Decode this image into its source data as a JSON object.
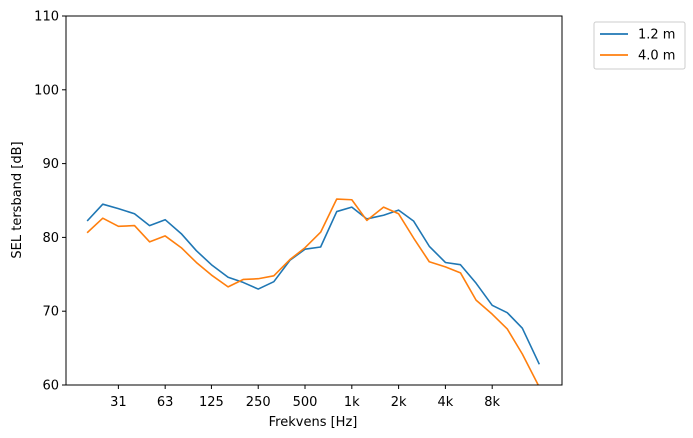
{
  "chart_data": {
    "type": "line",
    "xlabel": "Frekvens [Hz]",
    "ylabel": "SEL tersband [dB]",
    "ylim": [
      60,
      110
    ],
    "y_ticks": [
      60,
      70,
      80,
      90,
      100,
      110
    ],
    "x_scale": "log",
    "x_ticks": [
      {
        "value": 31.5,
        "label": "31"
      },
      {
        "value": 63,
        "label": "63"
      },
      {
        "value": 125,
        "label": "125"
      },
      {
        "value": 250,
        "label": "250"
      },
      {
        "value": 500,
        "label": "500"
      },
      {
        "value": 1000,
        "label": "1k"
      },
      {
        "value": 2000,
        "label": "2k"
      },
      {
        "value": 4000,
        "label": "4k"
      },
      {
        "value": 8000,
        "label": "8k"
      }
    ],
    "x": [
      20,
      25,
      31.5,
      40,
      50,
      63,
      80,
      100,
      125,
      160,
      200,
      250,
      315,
      400,
      500,
      630,
      800,
      1000,
      1250,
      1600,
      2000,
      2500,
      3150,
      4000,
      5000,
      6300,
      8000,
      10000,
      12500,
      16000
    ],
    "grid": false,
    "legend_position": "outside-top-right",
    "series": [
      {
        "name": "1.2 m",
        "color": "#1f77b4",
        "values": [
          82.3,
          84.5,
          83.9,
          83.2,
          81.6,
          82.4,
          80.5,
          78.2,
          76.3,
          74.6,
          73.9,
          73.0,
          74.0,
          76.9,
          78.4,
          78.7,
          83.5,
          84.1,
          82.5,
          83.0,
          83.7,
          82.2,
          78.8,
          76.6,
          76.3,
          73.8,
          70.8,
          69.8,
          67.7,
          62.9
        ]
      },
      {
        "name": "4.0 m",
        "color": "#ff7f0e",
        "values": [
          80.7,
          82.6,
          81.5,
          81.6,
          79.4,
          80.2,
          78.6,
          76.6,
          74.9,
          73.3,
          74.3,
          74.4,
          74.8,
          77.0,
          78.6,
          80.7,
          85.2,
          85.1,
          82.3,
          84.1,
          83.2,
          79.9,
          76.7,
          76.0,
          75.2,
          71.5,
          69.6,
          67.6,
          64.2,
          59.8
        ]
      }
    ]
  }
}
